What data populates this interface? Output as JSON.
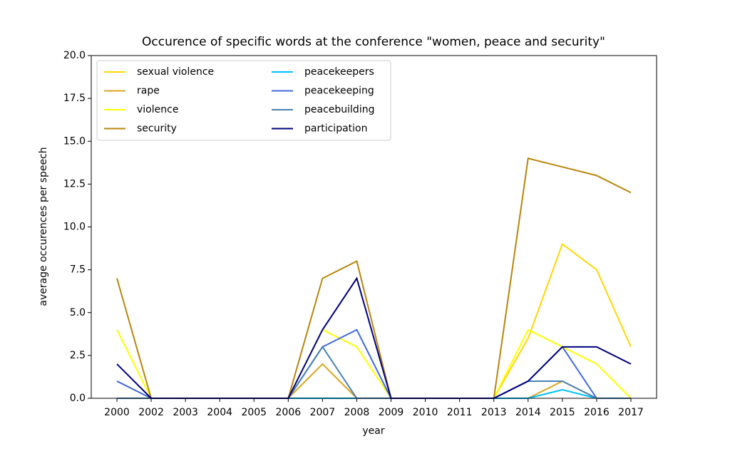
{
  "chart_data": {
    "type": "line",
    "title": "Occurence of specific words at the conference \"women, peace and security\"",
    "x_label": "year",
    "y_label": "average occurences per speech",
    "categories": [
      "2000",
      "2002",
      "2003",
      "2004",
      "2005",
      "2006",
      "2007",
      "2008",
      "2009",
      "2010",
      "2011",
      "2013",
      "2014",
      "2015",
      "2016",
      "2017"
    ],
    "ylim": [
      0,
      20
    ],
    "yticks": [
      {
        "value": 0,
        "label": "0.0"
      },
      {
        "value": 2.5,
        "label": "2.5"
      },
      {
        "value": 5,
        "label": "5.0"
      },
      {
        "value": 7.5,
        "label": "7.5"
      },
      {
        "value": 10,
        "label": "10.0"
      },
      {
        "value": 12.5,
        "label": "12.5"
      },
      {
        "value": 15,
        "label": "15.0"
      },
      {
        "value": 17.5,
        "label": "17.5"
      },
      {
        "value": 20,
        "label": "20.0"
      }
    ],
    "grid": false,
    "legend_position": "upper-left",
    "series": [
      {
        "name": "sexual violence",
        "color": "#ffd700",
        "values": [
          0,
          0,
          0,
          0,
          0,
          0,
          0,
          0,
          0,
          0,
          0,
          0,
          3.5,
          9,
          7.5,
          3
        ]
      },
      {
        "name": "rape",
        "color": "#daa520",
        "values": [
          0,
          0,
          0,
          0,
          0,
          0,
          2,
          0,
          0,
          0,
          0,
          0,
          0,
          1,
          0,
          0
        ]
      },
      {
        "name": "violence",
        "color": "#ffff00",
        "values": [
          4,
          0,
          0,
          0,
          0,
          0,
          4,
          3,
          0,
          0,
          0,
          0,
          4,
          3,
          2,
          0
        ]
      },
      {
        "name": "security",
        "color": "#b8860b",
        "values": [
          7,
          0,
          0,
          0,
          0,
          0,
          7,
          8,
          0,
          0,
          0,
          0,
          14,
          13.5,
          13,
          12
        ]
      },
      {
        "name": "peacekeepers",
        "color": "#00bfff",
        "values": [
          0,
          0,
          0,
          0,
          0,
          0,
          0,
          0,
          0,
          0,
          0,
          0,
          0,
          0.5,
          0,
          0
        ]
      },
      {
        "name": "peacekeeping",
        "color": "#4169e1",
        "values": [
          1,
          0,
          0,
          0,
          0,
          0,
          3,
          4,
          0,
          0,
          0,
          0,
          1,
          3,
          0,
          0
        ]
      },
      {
        "name": "peacebuilding",
        "color": "#4682b4",
        "values": [
          0,
          0,
          0,
          0,
          0,
          0,
          3,
          0,
          0,
          0,
          0,
          0,
          1,
          1,
          0,
          0
        ]
      },
      {
        "name": "participation",
        "color": "#000080",
        "values": [
          2,
          0,
          0,
          0,
          0,
          0,
          4,
          7,
          0,
          0,
          0,
          0,
          1,
          3,
          3,
          2
        ]
      }
    ]
  }
}
